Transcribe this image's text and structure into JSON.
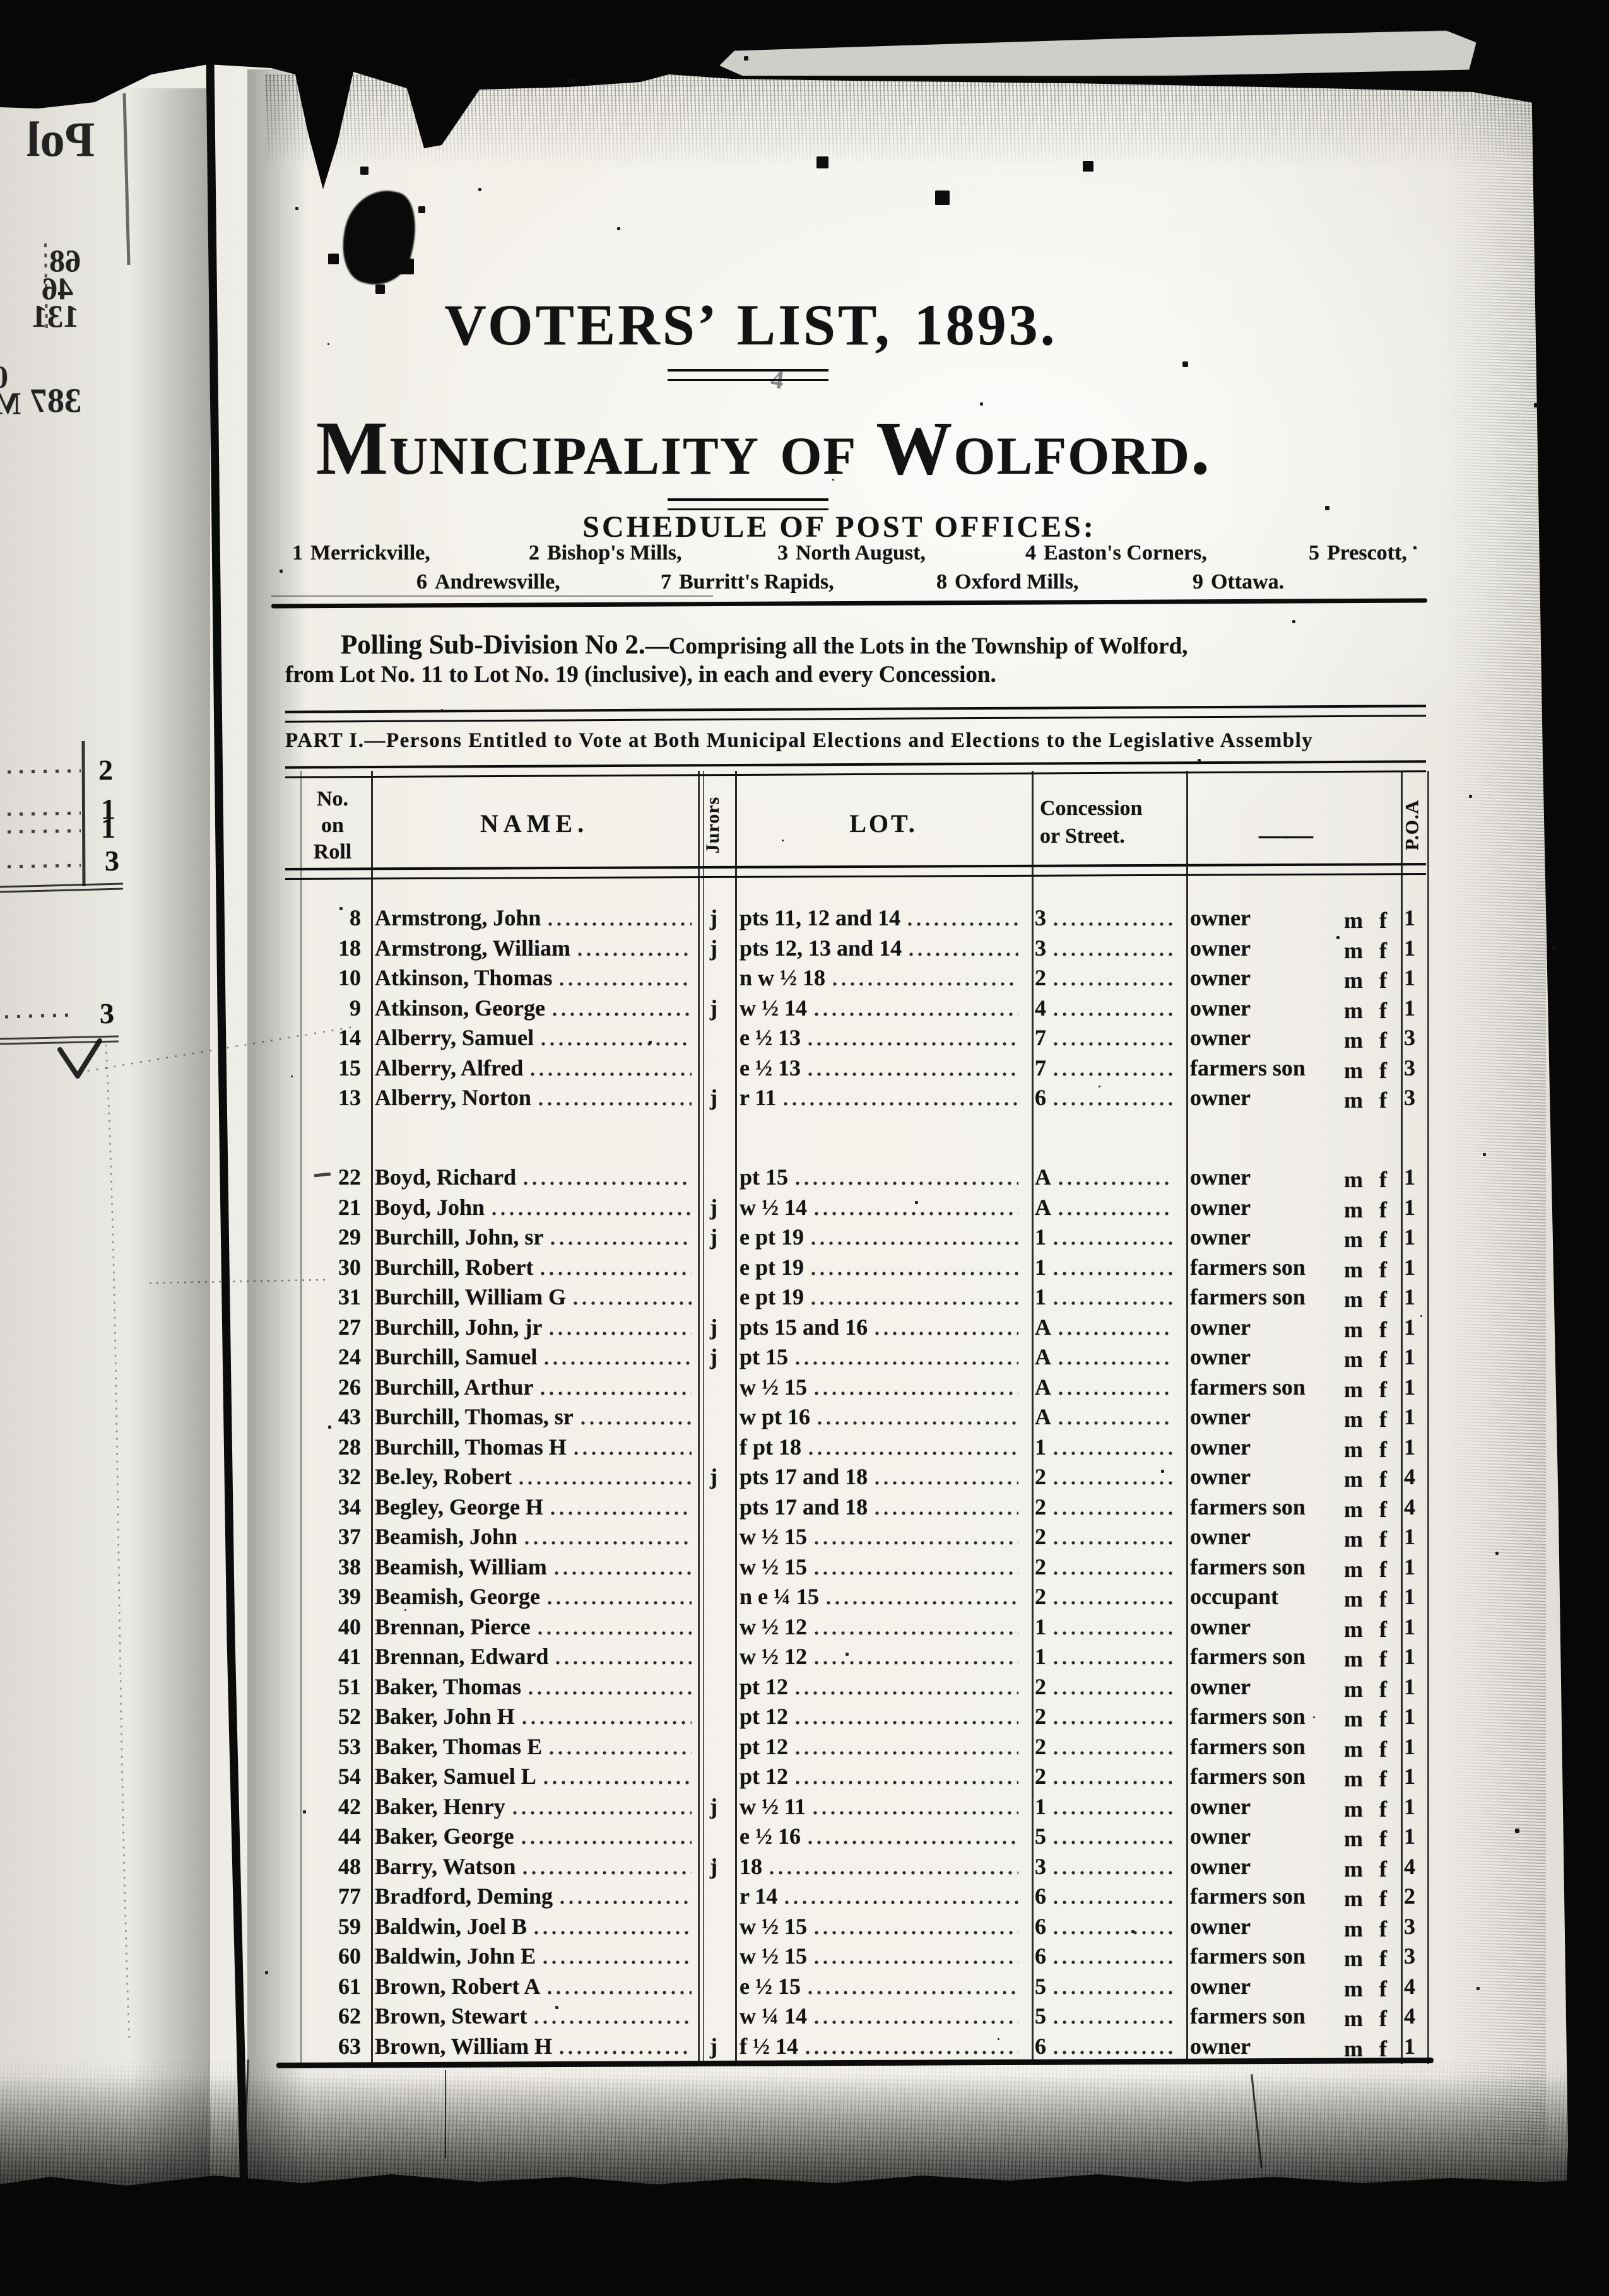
{
  "doc": {
    "title_line1": "VOTERS’ LIST, 1893.",
    "title_line2": "Municipality of Wolford.",
    "schedule_heading": "SCHEDULE OF POST OFFICES:",
    "post_offices_row1": [
      {
        "num": "1",
        "name": "Merrickville,"
      },
      {
        "num": "2",
        "name": "Bishop's Mills,"
      },
      {
        "num": "3",
        "name": "North August,"
      },
      {
        "num": "4",
        "name": "Easton's Corners,"
      },
      {
        "num": "5",
        "name": "Prescott,"
      }
    ],
    "post_offices_row2": [
      {
        "num": "6",
        "name": "Andrewsville,"
      },
      {
        "num": "7",
        "name": "Burritt's Rapids,"
      },
      {
        "num": "8",
        "name": "Oxford Mills,"
      },
      {
        "num": "9",
        "name": "Ottawa."
      }
    ],
    "polling_bold": "Polling Sub-Division No 2.",
    "polling_rest": "—Comprising all the Lots in the Township of Wolford,",
    "polling_line2": "from Lot No. 11 to Lot No. 19 (inclusive), in each and every Concession.",
    "part_heading": "PART I.—Persons Entitled to Vote at Both Municipal Elections and Elections to the Legislative Assembly"
  },
  "table": {
    "headers": {
      "roll": [
        "No.",
        "on",
        "Roll"
      ],
      "name": "NAME.",
      "jurors": "Jurors",
      "lot": "LOT.",
      "concession": [
        "Concession",
        "or Street."
      ],
      "blank": "——",
      "poa": "P.O.A"
    },
    "mf_label": "m f",
    "rows": [
      {
        "roll": "8",
        "name": "Armstrong, John",
        "juror": "j",
        "lot": "pts 11, 12 and 14",
        "con": "3",
        "status": "owner",
        "poa": "1",
        "group": 1
      },
      {
        "roll": "18",
        "name": "Armstrong, William",
        "juror": "j",
        "lot": "pts 12, 13 and 14",
        "con": "3",
        "status": "owner",
        "poa": "1",
        "group": 1
      },
      {
        "roll": "10",
        "name": "Atkinson, Thomas",
        "juror": "",
        "lot": "n w ½ 18",
        "con": "2",
        "status": "owner",
        "poa": "1",
        "group": 1
      },
      {
        "roll": "9",
        "name": "Atkinson, George",
        "juror": "j",
        "lot": "w ½ 14",
        "con": "4",
        "status": "owner",
        "poa": "1",
        "group": 1
      },
      {
        "roll": "14",
        "name": "Alberry, Samuel",
        "juror": "",
        "lot": "e ½ 13",
        "con": "7",
        "status": "owner",
        "poa": "3",
        "group": 1
      },
      {
        "roll": "15",
        "name": "Alberry, Alfred",
        "juror": "",
        "lot": "e ½ 13",
        "con": "7",
        "status": "farmers son",
        "poa": "3",
        "group": 1
      },
      {
        "roll": "13",
        "name": "Alberry, Norton",
        "juror": "j",
        "lot": "r 11",
        "con": "6",
        "status": "owner",
        "poa": "3",
        "group": 1
      },
      {
        "roll": "22",
        "name": "Boyd, Richard",
        "juror": "",
        "lot": "pt 15",
        "con": "A",
        "status": "owner",
        "poa": "1",
        "group": 2
      },
      {
        "roll": "21",
        "name": "Boyd, John",
        "juror": "j",
        "lot": "w ½ 14",
        "con": "A",
        "status": "owner",
        "poa": "1",
        "group": 2
      },
      {
        "roll": "29",
        "name": "Burchill, John, sr",
        "juror": "j",
        "lot": "e pt 19",
        "con": "1",
        "status": "owner",
        "poa": "1",
        "group": 2
      },
      {
        "roll": "30",
        "name": "Burchill, Robert",
        "juror": "",
        "lot": "e pt 19",
        "con": "1",
        "status": "farmers son",
        "poa": "1",
        "group": 2
      },
      {
        "roll": "31",
        "name": "Burchill, William G",
        "juror": "",
        "lot": "e pt 19",
        "con": "1",
        "status": "farmers son",
        "poa": "1",
        "group": 2
      },
      {
        "roll": "27",
        "name": "Burchill, John, jr",
        "juror": "j",
        "lot": "pts 15 and 16",
        "con": "A",
        "status": "owner",
        "poa": "1",
        "group": 2
      },
      {
        "roll": "24",
        "name": "Burchill, Samuel",
        "juror": "j",
        "lot": "pt 15",
        "con": "A",
        "status": "owner",
        "poa": "1",
        "group": 2
      },
      {
        "roll": "26",
        "name": "Burchill, Arthur",
        "juror": "",
        "lot": "w ½ 15",
        "con": "A",
        "status": "farmers son",
        "poa": "1",
        "group": 2
      },
      {
        "roll": "43",
        "name": "Burchill, Thomas, sr",
        "juror": "",
        "lot": "w pt 16",
        "con": "A",
        "status": "owner",
        "poa": "1",
        "group": 2
      },
      {
        "roll": "28",
        "name": "Burchill, Thomas H",
        "juror": "",
        "lot": "f pt 18",
        "con": "1",
        "status": "owner",
        "poa": "1",
        "group": 2
      },
      {
        "roll": "32",
        "name": "Be.ley, Robert",
        "juror": "j",
        "lot": "pts 17 and 18",
        "con": "2",
        "status": "owner",
        "poa": "4",
        "group": 2
      },
      {
        "roll": "34",
        "name": "Begley, George H",
        "juror": "",
        "lot": "pts 17 and 18",
        "con": "2",
        "status": "farmers son",
        "poa": "4",
        "group": 2
      },
      {
        "roll": "37",
        "name": "Beamish, John",
        "juror": "",
        "lot": "w ½ 15",
        "con": "2",
        "status": "owner",
        "poa": "1",
        "group": 2
      },
      {
        "roll": "38",
        "name": "Beamish, William",
        "juror": "",
        "lot": "w ½ 15",
        "con": "2",
        "status": "farmers son",
        "poa": "1",
        "group": 2
      },
      {
        "roll": "39",
        "name": "Beamish, George",
        "juror": "",
        "lot": "n e ¼ 15",
        "con": "2",
        "status": "occupant",
        "poa": "1",
        "group": 2
      },
      {
        "roll": "40",
        "name": "Brennan, Pierce",
        "juror": "",
        "lot": "w ½ 12",
        "con": "1",
        "status": "owner",
        "poa": "1",
        "group": 2
      },
      {
        "roll": "41",
        "name": "Brennan, Edward",
        "juror": "",
        "lot": "w ½ 12",
        "con": "1",
        "status": "farmers son",
        "poa": "1",
        "group": 2
      },
      {
        "roll": "51",
        "name": "Baker, Thomas",
        "juror": "",
        "lot": "pt 12",
        "con": "2",
        "status": "owner",
        "poa": "1",
        "group": 2
      },
      {
        "roll": "52",
        "name": "Baker, John H",
        "juror": "",
        "lot": "pt 12",
        "con": "2",
        "status": "farmers son",
        "poa": "1",
        "group": 2
      },
      {
        "roll": "53",
        "name": "Baker, Thomas E",
        "juror": "",
        "lot": "pt 12",
        "con": "2",
        "status": "farmers son",
        "poa": "1",
        "group": 2
      },
      {
        "roll": "54",
        "name": "Baker, Samuel L",
        "juror": "",
        "lot": "pt 12",
        "con": "2",
        "status": "farmers son",
        "poa": "1",
        "group": 2
      },
      {
        "roll": "42",
        "name": "Baker, Henry",
        "juror": "j",
        "lot": "w ½ 11",
        "con": "1",
        "status": "owner",
        "poa": "1",
        "group": 2
      },
      {
        "roll": "44",
        "name": "Baker, George",
        "juror": "",
        "lot": "e ½ 16",
        "con": "5",
        "status": "owner",
        "poa": "1",
        "group": 2
      },
      {
        "roll": "48",
        "name": "Barry, Watson",
        "juror": "j",
        "lot": "18",
        "con": "3",
        "status": "owner",
        "poa": "4",
        "group": 2
      },
      {
        "roll": "77",
        "name": "Bradford, Deming",
        "juror": "",
        "lot": "r 14",
        "con": "6",
        "status": "farmers son",
        "poa": "2",
        "group": 2
      },
      {
        "roll": "59",
        "name": "Baldwin, Joel B",
        "juror": "",
        "lot": "w ½ 15",
        "con": "6",
        "status": "owner",
        "poa": "3",
        "group": 2
      },
      {
        "roll": "60",
        "name": "Baldwin, John E",
        "juror": "",
        "lot": "w ½ 15",
        "con": "6",
        "status": "farmers son",
        "poa": "3",
        "group": 2
      },
      {
        "roll": "61",
        "name": "Brown, Robert A",
        "juror": "",
        "lot": "e ½ 15",
        "con": "5",
        "status": "owner",
        "poa": "4",
        "group": 2
      },
      {
        "roll": "62",
        "name": "Brown, Stewart",
        "juror": "",
        "lot": "w ¼ 14",
        "con": "5",
        "status": "farmers son",
        "poa": "4",
        "group": 2
      },
      {
        "roll": "63",
        "name": "Brown, William H",
        "juror": "j",
        "lot": "f ½ 14",
        "con": "6",
        "status": "owner",
        "poa": "1",
        "group": 2
      }
    ]
  },
  "margin": {
    "mirrored_fragments": [
      "Pol",
      "68",
      "46",
      "131",
      "0",
      "387",
      "M"
    ],
    "stray_digits": [
      "2",
      "1",
      "1",
      "3",
      "3"
    ],
    "handwritten_mark": "4"
  }
}
